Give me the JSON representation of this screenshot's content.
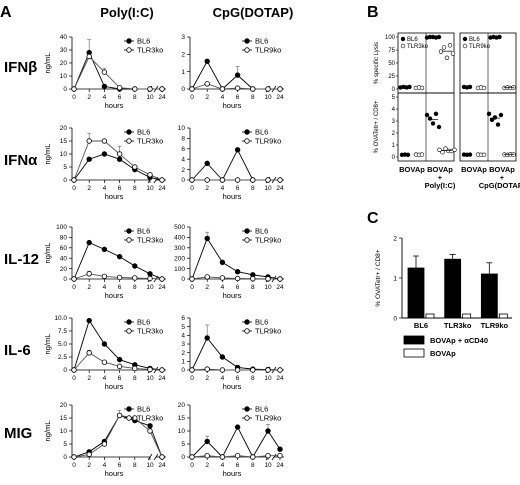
{
  "panels": {
    "a": "A",
    "b": "B",
    "c": "C"
  },
  "col_titles": [
    "Poly(I:C)",
    "CpG(DOTAP)"
  ],
  "cytokines": [
    "IFNβ",
    "IFNα",
    "IL-12",
    "IL-6",
    "MIG"
  ],
  "a_ylabel": "ng/mL",
  "a_xlabel": "hours",
  "b_ylabel_top": "% specific Lysis",
  "b_ylabel_bottom": "% OVATetr+ / CD8+",
  "b_xcats": [
    "BOVAp",
    "BOVAp\n+\nPoly(I:C)",
    "BOVAp",
    "BOVAp\n+\nCpG(DOTAP)"
  ],
  "c_ylabel": "% OVATetr+ / CD8+",
  "c_legend": [
    "BOVAp + αCD40",
    "BOVAp"
  ],
  "chart_data": [
    {
      "type": "line",
      "id": "IFNb-polyIC",
      "ylabel": "ng/mL",
      "xlabel": "hours",
      "x": [
        0,
        2,
        4,
        6,
        8,
        10,
        24
      ],
      "xticks": [
        "0",
        "2",
        "4",
        "6",
        "8",
        "10",
        "24"
      ],
      "ylim": [
        0,
        40
      ],
      "yticks": [
        0,
        10,
        20,
        30,
        40
      ],
      "series": [
        {
          "name": "BL6",
          "values": [
            0,
            28,
            2,
            0,
            0,
            0,
            0
          ],
          "err": [
            0,
            10,
            0,
            0,
            0,
            0,
            0
          ],
          "marker": "filled"
        },
        {
          "name": "TLR3ko",
          "values": [
            0,
            25,
            13,
            1,
            0,
            0,
            0
          ],
          "err": [
            0,
            0,
            3,
            0,
            0,
            0,
            0
          ],
          "marker": "open"
        }
      ]
    },
    {
      "type": "line",
      "id": "IFNb-CpG",
      "x": [
        0,
        2,
        4,
        6,
        8,
        10,
        24
      ],
      "xticks": [
        "0",
        "2",
        "4",
        "6",
        "8",
        "10",
        "24"
      ],
      "ylim": [
        0,
        3
      ],
      "yticks": [
        0,
        1,
        2,
        3
      ],
      "series": [
        {
          "name": "BL6",
          "values": [
            0,
            1.6,
            0,
            0.8,
            0,
            0,
            0
          ],
          "err": [
            0,
            0,
            0,
            0.5,
            0,
            0,
            0
          ],
          "marker": "filled"
        },
        {
          "name": "TLR9ko",
          "values": [
            0,
            0.3,
            0,
            0.05,
            0,
            0,
            0
          ],
          "err": [
            0,
            0,
            0,
            0,
            0,
            0,
            0
          ],
          "marker": "open"
        }
      ]
    },
    {
      "type": "line",
      "id": "IFNa-polyIC",
      "x": [
        0,
        2,
        4,
        6,
        8,
        10,
        24
      ],
      "xticks": [
        "0",
        "2",
        "4",
        "6",
        "8",
        "10",
        "24"
      ],
      "ylim": [
        0,
        20
      ],
      "yticks": [
        0,
        5,
        10,
        15,
        20
      ],
      "series": [
        {
          "name": "BL6",
          "values": [
            0,
            8,
            10,
            8,
            4,
            1,
            0
          ],
          "err": [
            0,
            0,
            0,
            0,
            0,
            0,
            0
          ],
          "marker": "filled"
        },
        {
          "name": "TLR3ko",
          "values": [
            0,
            15,
            15,
            10,
            5,
            2,
            0
          ],
          "err": [
            0,
            3,
            0,
            3,
            0,
            0,
            0
          ],
          "marker": "open"
        }
      ]
    },
    {
      "type": "line",
      "id": "IFNa-CpG",
      "x": [
        0,
        2,
        4,
        6,
        8,
        10,
        24
      ],
      "xticks": [
        "0",
        "2",
        "4",
        "6",
        "8",
        "10",
        "24"
      ],
      "ylim": [
        0,
        10
      ],
      "yticks": [
        0,
        2,
        4,
        6,
        8,
        10
      ],
      "series": [
        {
          "name": "BL6",
          "values": [
            0,
            3.2,
            0,
            5.8,
            0,
            0,
            0
          ],
          "err": [
            0,
            0,
            0,
            0,
            0,
            0,
            0
          ],
          "marker": "filled"
        },
        {
          "name": "TLR9ko",
          "values": [
            0,
            0,
            0,
            0,
            0,
            0,
            0
          ],
          "err": [
            0,
            0,
            0,
            0,
            0,
            0,
            0
          ],
          "marker": "open"
        }
      ]
    },
    {
      "type": "line",
      "id": "IL12-polyIC",
      "x": [
        0,
        2,
        4,
        6,
        8,
        10,
        24
      ],
      "xticks": [
        "0",
        "2",
        "4",
        "6",
        "8",
        "10",
        "24"
      ],
      "ylim": [
        0,
        100
      ],
      "yticks": [
        0,
        20,
        40,
        60,
        80,
        100
      ],
      "series": [
        {
          "name": "BL6",
          "values": [
            0,
            70,
            57,
            43,
            25,
            10,
            0
          ],
          "err": [
            0,
            0,
            0,
            0,
            0,
            0,
            0
          ],
          "marker": "filled"
        },
        {
          "name": "TLR3ko",
          "values": [
            0,
            10,
            5,
            3,
            2,
            1,
            0
          ],
          "err": [
            0,
            5,
            0,
            0,
            0,
            0,
            0
          ],
          "marker": "open"
        }
      ]
    },
    {
      "type": "line",
      "id": "IL12-CpG",
      "x": [
        0,
        2,
        4,
        6,
        8,
        10,
        24
      ],
      "xticks": [
        "0",
        "2",
        "4",
        "6",
        "8",
        "10",
        "24"
      ],
      "ylim": [
        0,
        500
      ],
      "yticks": [
        0,
        100,
        200,
        300,
        400,
        500
      ],
      "series": [
        {
          "name": "BL6",
          "values": [
            0,
            390,
            160,
            70,
            40,
            20,
            0
          ],
          "err": [
            0,
            60,
            0,
            0,
            0,
            0,
            0
          ],
          "marker": "filled"
        },
        {
          "name": "TLR9ko",
          "values": [
            0,
            20,
            10,
            5,
            3,
            2,
            0
          ],
          "err": [
            0,
            0,
            0,
            0,
            0,
            0,
            0
          ],
          "marker": "open"
        }
      ]
    },
    {
      "type": "line",
      "id": "IL6-polyIC",
      "x": [
        0,
        2,
        4,
        6,
        8,
        10,
        24
      ],
      "xticks": [
        "0",
        "2",
        "4",
        "6",
        "8",
        "10",
        "24"
      ],
      "ylim": [
        0,
        10
      ],
      "yticks": [
        0,
        2.5,
        5,
        7.5,
        10
      ],
      "yticklabels": [
        "0",
        "2.5",
        "5.0",
        "7.5",
        "10.0"
      ],
      "series": [
        {
          "name": "BL6",
          "values": [
            0,
            9.5,
            5,
            2,
            1,
            0.3,
            0
          ],
          "err": [
            0,
            0,
            0,
            0,
            0,
            0,
            0
          ],
          "marker": "filled"
        },
        {
          "name": "TLR3ko",
          "values": [
            0,
            3.3,
            1.5,
            0.7,
            0.3,
            0.1,
            0
          ],
          "err": [
            0,
            0.5,
            0,
            0,
            0,
            0,
            0
          ],
          "marker": "open"
        }
      ]
    },
    {
      "type": "line",
      "id": "IL6-CpG",
      "x": [
        0,
        2,
        4,
        6,
        8,
        10,
        24
      ],
      "xticks": [
        "0",
        "2",
        "4",
        "6",
        "8",
        "10",
        "24"
      ],
      "ylim": [
        0,
        6
      ],
      "yticks": [
        0,
        1,
        2,
        3,
        4,
        5,
        6
      ],
      "series": [
        {
          "name": "BL6",
          "values": [
            0,
            3.7,
            1.5,
            0.3,
            0.1,
            0.05,
            0
          ],
          "err": [
            0,
            1.5,
            0,
            0,
            0,
            0,
            0
          ],
          "marker": "filled"
        },
        {
          "name": "TLR9ko",
          "values": [
            0,
            0.1,
            0,
            0,
            0,
            0,
            0
          ],
          "err": [
            0,
            0,
            0,
            0,
            0,
            0,
            0
          ],
          "marker": "open"
        }
      ]
    },
    {
      "type": "line",
      "id": "MIG-polyIC",
      "x": [
        0,
        2,
        4,
        6,
        8,
        10,
        24
      ],
      "xticks": [
        "0",
        "2",
        "4",
        "6",
        "8",
        "10",
        "24"
      ],
      "ylim": [
        0,
        20
      ],
      "yticks": [
        0,
        5,
        10,
        15,
        20
      ],
      "series": [
        {
          "name": "BL6",
          "values": [
            0,
            2,
            6,
            16,
            14,
            12,
            0
          ],
          "err": [
            0,
            0,
            0,
            2,
            0,
            0,
            0
          ],
          "marker": "filled"
        },
        {
          "name": "TLR3ko",
          "values": [
            0,
            1,
            5,
            16,
            15,
            10,
            0
          ],
          "err": [
            0,
            0,
            0,
            0,
            0,
            0,
            0
          ],
          "marker": "open"
        }
      ]
    },
    {
      "type": "line",
      "id": "MIG-CpG",
      "x": [
        0,
        2,
        4,
        6,
        8,
        10,
        24
      ],
      "xticks": [
        "0",
        "2",
        "4",
        "6",
        "8",
        "10",
        "24"
      ],
      "ylim": [
        0,
        20
      ],
      "yticks": [
        0,
        5,
        10,
        15,
        20
      ],
      "series": [
        {
          "name": "BL6",
          "values": [
            0,
            6,
            0,
            11.5,
            0,
            10,
            3
          ],
          "err": [
            0,
            2,
            0,
            0,
            0,
            2.5,
            0
          ],
          "marker": "filled"
        },
        {
          "name": "TLR9ko",
          "values": [
            0,
            0.5,
            0,
            0.5,
            0,
            0.5,
            0.5
          ],
          "err": [
            0,
            0,
            0,
            0,
            0,
            0,
            0
          ],
          "marker": "open"
        }
      ]
    },
    {
      "type": "scatter",
      "id": "B-lysis-polyIC",
      "ylabel": "% specific Lysis",
      "ylim": [
        0,
        100
      ],
      "yticks": [
        0,
        25,
        50,
        75,
        100
      ],
      "legend": [
        "BL6",
        "TLR3ko"
      ],
      "groups": [
        {
          "strain": "BL6",
          "cat": 0,
          "values": [
            3,
            4,
            3,
            4
          ]
        },
        {
          "strain": "TLR3ko",
          "cat": 0,
          "values": [
            2,
            3,
            2
          ]
        },
        {
          "strain": "BL6",
          "cat": 1,
          "values": [
            99,
            100,
            100,
            99,
            100
          ]
        },
        {
          "strain": "TLR3ko",
          "cat": 1,
          "values": [
            72,
            80,
            60,
            84,
            68
          ]
        }
      ]
    },
    {
      "type": "scatter",
      "id": "B-lysis-CpG",
      "ylim": [
        0,
        100
      ],
      "yticks": [
        0,
        25,
        50,
        75,
        100
      ],
      "legend": [
        "BL6",
        "TLR9ko"
      ],
      "groups": [
        {
          "strain": "BL6",
          "cat": 0,
          "values": [
            4,
            3,
            4
          ]
        },
        {
          "strain": "TLR9ko",
          "cat": 0,
          "values": [
            2,
            3,
            2
          ]
        },
        {
          "strain": "BL6",
          "cat": 1,
          "values": [
            99,
            100,
            99,
            100
          ]
        },
        {
          "strain": "TLR9ko",
          "cat": 1,
          "values": [
            2,
            3,
            2,
            3
          ]
        }
      ]
    },
    {
      "type": "scatter",
      "id": "B-tetr-polyIC",
      "ylabel": "% OVATetr+ / CD8+",
      "ylim": [
        0,
        5
      ],
      "yticks": [
        0,
        1,
        2,
        3,
        4,
        5
      ],
      "groups": [
        {
          "strain": "BL6",
          "cat": 0,
          "values": [
            0.18,
            0.2,
            0.18
          ]
        },
        {
          "strain": "TLR3ko",
          "cat": 0,
          "values": [
            0.2,
            0.18,
            0.2
          ]
        },
        {
          "strain": "BL6",
          "cat": 1,
          "values": [
            3.5,
            3.2,
            2.8,
            3.6,
            2.5
          ]
        },
        {
          "strain": "TLR3ko",
          "cat": 1,
          "values": [
            0.6,
            0.4,
            0.7,
            0.5,
            0.5,
            0.6
          ]
        }
      ]
    },
    {
      "type": "scatter",
      "id": "B-tetr-CpG",
      "ylim": [
        0,
        5
      ],
      "yticks": [
        0,
        1,
        2,
        3,
        4,
        5
      ],
      "groups": [
        {
          "strain": "BL6",
          "cat": 0,
          "values": [
            0.2,
            0.18,
            0.2
          ]
        },
        {
          "strain": "TLR9ko",
          "cat": 0,
          "values": [
            0.2,
            0.18,
            0.18
          ]
        },
        {
          "strain": "BL6",
          "cat": 1,
          "values": [
            3.6,
            3.1,
            3.3,
            2.7,
            3.5
          ]
        },
        {
          "strain": "TLR9ko",
          "cat": 1,
          "values": [
            0.2,
            0.18,
            0.22,
            0.2
          ]
        }
      ]
    },
    {
      "type": "bar",
      "id": "C",
      "ylabel": "% OVATetr+ / CD8+",
      "categories": [
        "BL6",
        "TLR3ko",
        "TLR9ko"
      ],
      "ylim": [
        0,
        2
      ],
      "yticks": [
        0,
        1,
        2
      ],
      "series": [
        {
          "name": "BOVAp + αCD40",
          "values": [
            1.25,
            1.47,
            1.1
          ],
          "err": [
            0.3,
            0.12,
            0.28
          ],
          "color": "#000000"
        },
        {
          "name": "BOVAp",
          "values": [
            0.1,
            0.1,
            0.1
          ],
          "err": [
            0,
            0,
            0
          ],
          "color": "#ffffff"
        }
      ]
    }
  ]
}
